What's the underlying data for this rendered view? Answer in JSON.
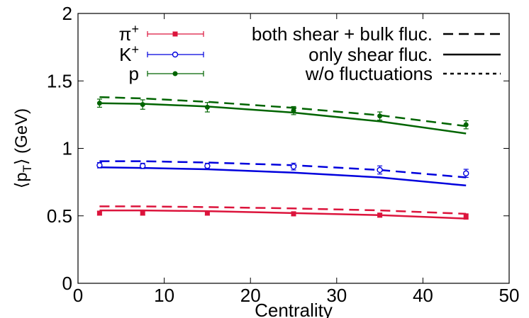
{
  "chart_data": {
    "type": "line",
    "title": "",
    "xlabel": "Centrality",
    "ylabel": "⟨pT⟩ (GeV)",
    "ylabel_main": "⟨p",
    "ylabel_sub": "T",
    "ylabel_rest": "⟩ (GeV)",
    "xlim": [
      0,
      50
    ],
    "ylim": [
      0,
      2
    ],
    "xticks": [
      0,
      10,
      20,
      30,
      40,
      50
    ],
    "yticks": [
      0,
      0.5,
      1,
      1.5,
      2
    ],
    "ytick_labels": [
      "0",
      "0.5",
      "1",
      "1.5",
      "2"
    ],
    "grid": false,
    "legend_position": "top",
    "data_legend": [
      {
        "base": "π",
        "sup": "+",
        "color": "#dc143c",
        "marker": "square"
      },
      {
        "base": "K",
        "sup": "+",
        "color": "#0000dd",
        "marker": "open-circle"
      },
      {
        "base": "p",
        "sup": "",
        "color": "#006400",
        "marker": "filled-circle"
      }
    ],
    "line_legend": [
      {
        "label": "both shear + bulk fluc.",
        "style": "dashed"
      },
      {
        "label": "only shear fluc.",
        "style": "solid"
      },
      {
        "label": "w/o fluctuations",
        "style": "dotted"
      }
    ],
    "x": [
      2.5,
      7.5,
      15,
      25,
      35,
      45
    ],
    "data": [
      {
        "color": "#dc143c",
        "marker": "square",
        "values": [
          0.52,
          0.52,
          0.52,
          0.515,
          0.505,
          0.495
        ],
        "errors": [
          0.015,
          0.015,
          0.015,
          0.015,
          0.015,
          0.02
        ]
      },
      {
        "color": "#0000dd",
        "marker": "open-circle",
        "values": [
          0.875,
          0.87,
          0.87,
          0.865,
          0.84,
          0.815
        ],
        "errors": [
          0.02,
          0.02,
          0.02,
          0.025,
          0.03,
          0.03
        ]
      },
      {
        "color": "#006400",
        "marker": "filled-circle",
        "values": [
          1.335,
          1.325,
          1.305,
          1.28,
          1.24,
          1.175
        ],
        "errors": [
          0.03,
          0.035,
          0.035,
          0.03,
          0.03,
          0.03
        ]
      }
    ],
    "curves": [
      {
        "color": "#dc143c",
        "style": "dashed",
        "x": [
          2.5,
          7.5,
          15,
          25,
          35,
          45
        ],
        "y": [
          0.57,
          0.57,
          0.565,
          0.555,
          0.54,
          0.515
        ]
      },
      {
        "color": "#dc143c",
        "style": "solid",
        "x": [
          2.5,
          7.5,
          15,
          25,
          35,
          45
        ],
        "y": [
          0.54,
          0.54,
          0.535,
          0.52,
          0.505,
          0.48
        ]
      },
      {
        "color": "#0000dd",
        "style": "dashed",
        "x": [
          2.5,
          7.5,
          15,
          25,
          35,
          45
        ],
        "y": [
          0.905,
          0.905,
          0.895,
          0.875,
          0.84,
          0.785
        ]
      },
      {
        "color": "#0000dd",
        "style": "solid",
        "x": [
          2.5,
          7.5,
          15,
          25,
          35,
          45
        ],
        "y": [
          0.86,
          0.855,
          0.845,
          0.82,
          0.785,
          0.725
        ]
      },
      {
        "color": "#006400",
        "style": "dashed",
        "x": [
          2.5,
          7.5,
          15,
          25,
          35,
          45
        ],
        "y": [
          1.38,
          1.37,
          1.345,
          1.3,
          1.245,
          1.165
        ]
      },
      {
        "color": "#006400",
        "style": "solid",
        "x": [
          2.5,
          7.5,
          15,
          25,
          35,
          45
        ],
        "y": [
          1.335,
          1.33,
          1.31,
          1.265,
          1.2,
          1.11
        ]
      }
    ]
  }
}
